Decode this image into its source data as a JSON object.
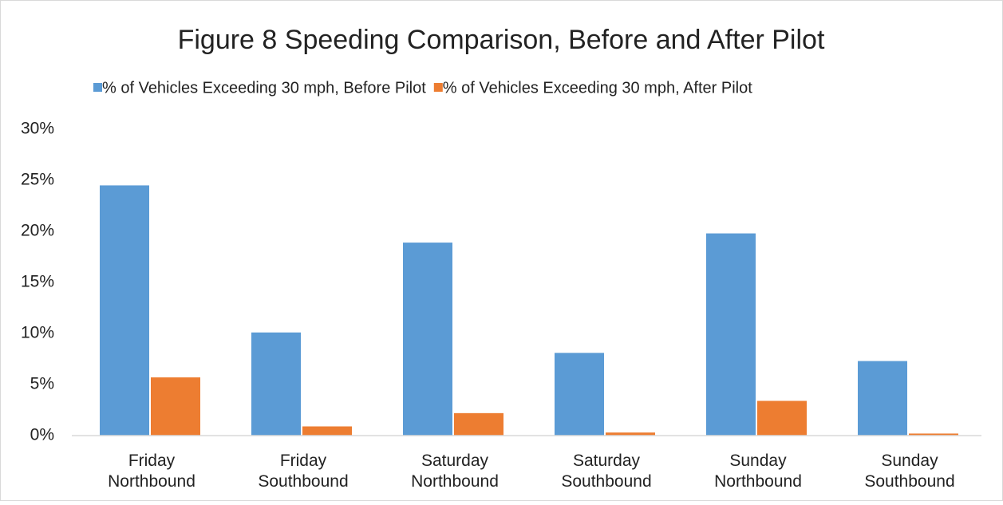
{
  "chart_data": {
    "type": "bar",
    "title": "Figure 8 Speeding Comparison, Before and After Pilot",
    "categories": [
      "Friday Northbound",
      "Friday Southbound",
      "Saturday Northbound",
      "Saturday Southbound",
      "Sunday Northbound",
      "Sunday Southbound"
    ],
    "series": [
      {
        "name": "% of Vehicles Exceeding 30 mph, Before Pilot",
        "color": "#5b9bd5",
        "values": [
          24.5,
          10.1,
          18.9,
          8.1,
          19.8,
          7.3
        ]
      },
      {
        "name": "% of Vehicles Exceeding 30 mph, After Pilot",
        "color": "#ed7d31",
        "values": [
          5.7,
          0.9,
          2.2,
          0.3,
          3.4,
          0.2
        ]
      }
    ],
    "ylim": [
      0,
      30
    ],
    "yticks": [
      {
        "value": 0,
        "label": "0%"
      },
      {
        "value": 5,
        "label": "5%"
      },
      {
        "value": 10,
        "label": "10%"
      },
      {
        "value": 15,
        "label": "15%"
      },
      {
        "value": 20,
        "label": "20%"
      },
      {
        "value": 25,
        "label": "25%"
      },
      {
        "value": 30,
        "label": "30%"
      }
    ],
    "grid": false,
    "legend": "top"
  }
}
